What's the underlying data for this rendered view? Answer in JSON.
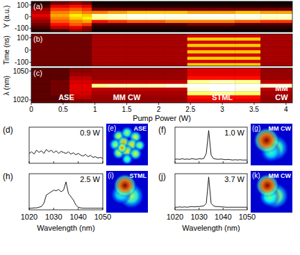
{
  "chart_data": [
    {
      "type": "heatmap",
      "panel": "(a)",
      "y_label": "Y (a.u.)",
      "color": "hot",
      "tick_labels": "y",
      "xlim": [
        0,
        4.1
      ],
      "ylim": [
        -130,
        130
      ],
      "yticks": [
        100,
        0,
        -100
      ],
      "x_bins": [
        0,
        0.3,
        0.6,
        0.8,
        0.95,
        1.2,
        1.5,
        1.8,
        2.1,
        2.45,
        2.8,
        3.2,
        3.6,
        3.85,
        4.1
      ],
      "y_bins": [
        -130,
        -104,
        -78,
        -52,
        -26,
        0,
        26,
        52,
        78,
        104,
        130
      ],
      "cells": [
        [
          0.05,
          0.1,
          0.2,
          0.15,
          0.02,
          0.02,
          0.02,
          0.02,
          0.02,
          0.02,
          0.02,
          0.02,
          0.02,
          0.02
        ],
        [
          0.1,
          0.25,
          0.3,
          0.2,
          0.05,
          0.05,
          0.05,
          0.05,
          0.05,
          0.05,
          0.05,
          0.05,
          0.05,
          0.05
        ],
        [
          0.15,
          0.35,
          0.45,
          0.4,
          0.1,
          0.1,
          0.1,
          0.1,
          0.1,
          0.15,
          0.15,
          0.1,
          0.1,
          0.1
        ],
        [
          0.2,
          0.45,
          0.5,
          0.55,
          0.35,
          0.4,
          0.45,
          0.45,
          0.5,
          0.5,
          0.5,
          0.45,
          0.4,
          0.4
        ],
        [
          0.25,
          0.5,
          0.6,
          0.65,
          0.85,
          0.9,
          0.95,
          0.95,
          0.95,
          0.95,
          0.95,
          0.95,
          0.9,
          0.9
        ],
        [
          0.3,
          0.55,
          0.65,
          0.6,
          0.9,
          0.95,
          1,
          1,
          1,
          1,
          1,
          1,
          0.95,
          0.95
        ],
        [
          0.25,
          0.5,
          0.55,
          0.5,
          0.5,
          0.55,
          0.6,
          0.6,
          0.6,
          0.55,
          0.55,
          0.6,
          0.55,
          0.55
        ],
        [
          0.2,
          0.4,
          0.45,
          0.4,
          0.15,
          0.15,
          0.15,
          0.15,
          0.15,
          0.15,
          0.15,
          0.15,
          0.15,
          0.15
        ],
        [
          0.1,
          0.3,
          0.35,
          0.3,
          0.05,
          0.05,
          0.05,
          0.05,
          0.05,
          0.05,
          0.05,
          0.05,
          0.05,
          0.05
        ],
        [
          0.05,
          0.15,
          0.2,
          0.15,
          0.02,
          0.02,
          0.02,
          0.02,
          0.02,
          0.02,
          0.02,
          0.02,
          0.02,
          0.02
        ]
      ]
    },
    {
      "type": "heatmap",
      "panel": "(b)",
      "y_label": "Time (ns)",
      "color": "hot",
      "tick_labels": "y",
      "xlim": [
        0,
        4.1
      ],
      "ylim": [
        -130,
        130
      ],
      "yticks": [
        100,
        0,
        -100
      ],
      "x_bins": [
        0,
        0.3,
        0.6,
        0.8,
        0.95,
        1.2,
        1.5,
        1.8,
        2.1,
        2.45,
        2.8,
        3.2,
        3.6,
        3.85,
        4.1
      ],
      "y_bins": [
        -130,
        -104,
        -78,
        -52,
        -26,
        0,
        26,
        52,
        78,
        104,
        130
      ],
      "cells": [
        [
          0.15,
          0.15,
          0.15,
          0.15,
          0.22,
          0.22,
          0.22,
          0.22,
          0.22,
          0.6,
          0.6,
          0.6,
          0.22,
          0.22
        ],
        [
          0.15,
          0.15,
          0.15,
          0.15,
          0.22,
          0.22,
          0.22,
          0.22,
          0.22,
          0.28,
          0.28,
          0.28,
          0.22,
          0.22
        ],
        [
          0.15,
          0.15,
          0.15,
          0.15,
          0.22,
          0.22,
          0.22,
          0.22,
          0.22,
          0.6,
          0.6,
          0.6,
          0.22,
          0.22
        ],
        [
          0.15,
          0.15,
          0.15,
          0.15,
          0.22,
          0.22,
          0.22,
          0.22,
          0.22,
          0.28,
          0.28,
          0.28,
          0.22,
          0.22
        ],
        [
          0.15,
          0.15,
          0.15,
          0.15,
          0.22,
          0.22,
          0.22,
          0.22,
          0.22,
          0.6,
          0.6,
          0.6,
          0.22,
          0.22
        ],
        [
          0.15,
          0.15,
          0.15,
          0.15,
          0.22,
          0.22,
          0.22,
          0.22,
          0.22,
          0.28,
          0.28,
          0.28,
          0.22,
          0.22
        ],
        [
          0.15,
          0.15,
          0.15,
          0.15,
          0.22,
          0.22,
          0.22,
          0.22,
          0.22,
          0.6,
          0.6,
          0.6,
          0.22,
          0.22
        ],
        [
          0.15,
          0.15,
          0.15,
          0.15,
          0.22,
          0.22,
          0.22,
          0.22,
          0.22,
          0.28,
          0.28,
          0.28,
          0.22,
          0.22
        ],
        [
          0.15,
          0.15,
          0.15,
          0.15,
          0.22,
          0.22,
          0.22,
          0.22,
          0.22,
          0.6,
          0.6,
          0.6,
          0.22,
          0.22
        ],
        [
          0.15,
          0.15,
          0.15,
          0.15,
          0.22,
          0.22,
          0.22,
          0.22,
          0.22,
          0.28,
          0.28,
          0.28,
          0.22,
          0.22
        ]
      ]
    },
    {
      "type": "heatmap",
      "panel": "(c)",
      "y_label": "λ (nm)",
      "x_label": "Pump Power (W)",
      "color": "hot",
      "tick_labels": true,
      "xlim": [
        0,
        4.1
      ],
      "ylim": [
        1017,
        1053
      ],
      "yticks": [
        1050,
        1020
      ],
      "xticks": [
        0,
        0.5,
        1,
        1.5,
        2,
        2.5,
        3,
        3.5,
        4
      ],
      "x_bins": [
        0,
        0.3,
        0.6,
        0.8,
        0.95,
        1.2,
        1.5,
        1.8,
        2.1,
        2.45,
        2.8,
        3.2,
        3.6,
        3.85,
        4.1
      ],
      "y_bins": [
        1017,
        1021,
        1025,
        1029,
        1033,
        1037,
        1041,
        1045,
        1049,
        1053
      ],
      "cells": [
        [
          0.12,
          0.12,
          0.18,
          0.18,
          0.2,
          0.2,
          0.2,
          0.2,
          0.2,
          0.3,
          0.3,
          0.3,
          0.2,
          0.2
        ],
        [
          0.12,
          0.12,
          0.25,
          0.25,
          0.2,
          0.2,
          0.2,
          0.2,
          0.2,
          0.35,
          0.35,
          0.35,
          0.2,
          0.2
        ],
        [
          0.12,
          0.15,
          0.28,
          0.28,
          0.22,
          0.22,
          0.22,
          0.22,
          0.22,
          0.8,
          0.85,
          0.8,
          0.22,
          0.22
        ],
        [
          0.12,
          0.15,
          0.3,
          0.3,
          0.25,
          0.25,
          0.25,
          0.25,
          0.25,
          0.95,
          1,
          0.95,
          0.25,
          0.25
        ],
        [
          0.12,
          0.15,
          0.3,
          0.3,
          0.85,
          0.9,
          0.9,
          0.9,
          0.95,
          1,
          1,
          1,
          0.95,
          0.95
        ],
        [
          0.12,
          0.15,
          0.28,
          0.28,
          0.25,
          0.25,
          0.25,
          0.25,
          0.25,
          0.85,
          0.9,
          0.85,
          0.25,
          0.25
        ],
        [
          0.12,
          0.12,
          0.25,
          0.25,
          0.2,
          0.2,
          0.2,
          0.2,
          0.2,
          0.35,
          0.35,
          0.35,
          0.2,
          0.2
        ],
        [
          0.12,
          0.12,
          0.2,
          0.2,
          0.2,
          0.2,
          0.2,
          0.2,
          0.2,
          0.3,
          0.3,
          0.3,
          0.2,
          0.2
        ],
        [
          0.12,
          0.12,
          0.18,
          0.18,
          0.2,
          0.2,
          0.2,
          0.2,
          0.2,
          0.3,
          0.3,
          0.3,
          0.2,
          0.2
        ]
      ],
      "annotations": [
        {
          "text": "ASE",
          "x": 0.55,
          "y": 1020
        },
        {
          "text": "MM CW",
          "x": 1.5,
          "y": 1020
        },
        {
          "text": "STML",
          "x": 3.0,
          "y": 1020
        },
        {
          "text": "MM",
          "x": 3.93,
          "y": 1029
        },
        {
          "text": "CW",
          "x": 3.93,
          "y": 1020
        }
      ]
    },
    {
      "type": "line",
      "panel": "(d)",
      "annotation": "0.9 W",
      "tick_labels": false,
      "xlim": [
        1020,
        1050
      ],
      "ylim": [
        0,
        1.1
      ],
      "xticks": [
        1020,
        1030,
        1040,
        1050
      ],
      "x": [
        1020,
        1021,
        1022,
        1023,
        1024,
        1025,
        1026,
        1027,
        1028,
        1029,
        1030,
        1031,
        1032,
        1033,
        1034,
        1035,
        1036,
        1037,
        1038,
        1039,
        1040,
        1041,
        1042,
        1043,
        1044,
        1045,
        1046,
        1047,
        1048,
        1049,
        1050
      ],
      "series": [
        {
          "color": "#000000",
          "values": [
            0.3,
            0.35,
            0.28,
            0.4,
            0.33,
            0.38,
            0.3,
            0.42,
            0.35,
            0.4,
            0.32,
            0.38,
            0.3,
            0.36,
            0.33,
            0.3,
            0.35,
            0.28,
            0.32,
            0.26,
            0.3,
            0.25,
            0.22,
            0.27,
            0.2,
            0.24,
            0.18,
            0.2,
            0.16,
            0.18,
            0.15
          ]
        }
      ]
    },
    {
      "type": "image",
      "panel": "(e)",
      "label": "ASE",
      "color": "jet",
      "spots": [
        {
          "x": 0.3,
          "y": 0.3,
          "r": 0.1,
          "intensity": 0.6
        },
        {
          "x": 0.5,
          "y": 0.22,
          "r": 0.1,
          "intensity": 0.55
        },
        {
          "x": 0.7,
          "y": 0.32,
          "r": 0.1,
          "intensity": 0.6
        },
        {
          "x": 0.22,
          "y": 0.5,
          "r": 0.1,
          "intensity": 0.55
        },
        {
          "x": 0.42,
          "y": 0.45,
          "r": 0.1,
          "intensity": 0.7
        },
        {
          "x": 0.62,
          "y": 0.5,
          "r": 0.1,
          "intensity": 0.65
        },
        {
          "x": 0.8,
          "y": 0.52,
          "r": 0.09,
          "intensity": 0.55
        },
        {
          "x": 0.3,
          "y": 0.7,
          "r": 0.1,
          "intensity": 0.6
        },
        {
          "x": 0.5,
          "y": 0.66,
          "r": 0.1,
          "intensity": 0.65
        },
        {
          "x": 0.7,
          "y": 0.72,
          "r": 0.1,
          "intensity": 0.6
        },
        {
          "x": 0.5,
          "y": 0.85,
          "r": 0.09,
          "intensity": 0.5
        },
        {
          "x": 0.38,
          "y": 0.58,
          "r": 0.08,
          "intensity": 0.75
        }
      ]
    },
    {
      "type": "line",
      "panel": "(f)",
      "annotation": "1.0 W",
      "tick_labels": false,
      "xlim": [
        1020,
        1050
      ],
      "ylim": [
        0,
        1.1
      ],
      "xticks": [
        1020,
        1030,
        1040,
        1050
      ],
      "x": [
        1020,
        1021,
        1022,
        1023,
        1024,
        1025,
        1026,
        1027,
        1028,
        1029,
        1030,
        1031,
        1032,
        1033,
        1034,
        1035,
        1036,
        1037,
        1038,
        1039,
        1040,
        1041,
        1042,
        1043,
        1044,
        1045,
        1046,
        1047,
        1048,
        1049,
        1050
      ],
      "series": [
        {
          "color": "#000000",
          "values": [
            0.12,
            0.13,
            0.12,
            0.14,
            0.12,
            0.13,
            0.12,
            0.14,
            0.13,
            0.12,
            0.14,
            0.13,
            0.15,
            0.3,
            1.0,
            0.25,
            0.14,
            0.13,
            0.12,
            0.13,
            0.12,
            0.11,
            0.12,
            0.11,
            0.1,
            0.11,
            0.1,
            0.11,
            0.1,
            0.1,
            0.1
          ]
        }
      ]
    },
    {
      "type": "image",
      "panel": "(g)",
      "label": "MM CW",
      "color": "jet",
      "spots": [
        {
          "x": 0.6,
          "y": 0.58,
          "r": 0.2,
          "intensity": 0.55
        },
        {
          "x": 0.48,
          "y": 0.68,
          "r": 0.16,
          "intensity": 0.45
        },
        {
          "x": 0.38,
          "y": 0.4,
          "r": 0.2,
          "intensity": 1
        }
      ]
    },
    {
      "type": "line",
      "panel": "(h)",
      "annotation": "2.5 W",
      "tick_labels": "x",
      "x_label": "Wavelength (nm)",
      "xlim": [
        1020,
        1050
      ],
      "ylim": [
        0,
        1.1
      ],
      "xticks": [
        1020,
        1030,
        1040,
        1050
      ],
      "x": [
        1020,
        1021,
        1022,
        1023,
        1024,
        1025,
        1026,
        1027,
        1028,
        1029,
        1030,
        1031,
        1032,
        1033,
        1034,
        1035,
        1036,
        1037,
        1038,
        1039,
        1040,
        1041,
        1042,
        1043,
        1044,
        1045,
        1046,
        1047,
        1048,
        1049,
        1050
      ],
      "series": [
        {
          "color": "#000000",
          "values": [
            0.05,
            0.05,
            0.06,
            0.06,
            0.08,
            0.1,
            0.2,
            0.45,
            0.5,
            0.55,
            0.6,
            0.58,
            0.62,
            0.55,
            0.6,
            0.85,
            0.5,
            0.4,
            0.3,
            0.15,
            0.08,
            0.06,
            0.05,
            0.05,
            0.05,
            0.05,
            0.05,
            0.05,
            0.05,
            0.05,
            0.05
          ]
        }
      ]
    },
    {
      "type": "image",
      "panel": "(i)",
      "label": "STML",
      "color": "jet",
      "spots": [
        {
          "x": 0.6,
          "y": 0.6,
          "r": 0.2,
          "intensity": 0.55
        },
        {
          "x": 0.35,
          "y": 0.56,
          "r": 0.16,
          "intensity": 0.45
        },
        {
          "x": 0.45,
          "y": 0.35,
          "r": 0.18,
          "intensity": 1
        }
      ]
    },
    {
      "type": "line",
      "panel": "(j)",
      "annotation": "3.7 W",
      "tick_labels": "x",
      "x_label": "Wavelength (nm)",
      "xlim": [
        1020,
        1050
      ],
      "ylim": [
        0,
        1.1
      ],
      "xticks": [
        1020,
        1030,
        1040,
        1050
      ],
      "x": [
        1020,
        1021,
        1022,
        1023,
        1024,
        1025,
        1026,
        1027,
        1028,
        1029,
        1030,
        1031,
        1032,
        1033,
        1034,
        1035,
        1036,
        1037,
        1038,
        1039,
        1040,
        1041,
        1042,
        1043,
        1044,
        1045,
        1046,
        1047,
        1048,
        1049,
        1050
      ],
      "series": [
        {
          "color": "#000000",
          "values": [
            0.08,
            0.08,
            0.09,
            0.08,
            0.09,
            0.08,
            0.09,
            0.1,
            0.09,
            0.1,
            0.1,
            0.11,
            0.12,
            0.2,
            1.0,
            0.2,
            0.12,
            0.1,
            0.1,
            0.09,
            0.09,
            0.08,
            0.08,
            0.08,
            0.08,
            0.08,
            0.08,
            0.08,
            0.08,
            0.08,
            0.08
          ]
        }
      ]
    },
    {
      "type": "image",
      "panel": "(k)",
      "label": "MM CW",
      "color": "jet",
      "spots": [
        {
          "x": 0.6,
          "y": 0.6,
          "r": 0.2,
          "intensity": 0.6
        },
        {
          "x": 0.45,
          "y": 0.62,
          "r": 0.16,
          "intensity": 0.5
        },
        {
          "x": 0.4,
          "y": 0.35,
          "r": 0.18,
          "intensity": 1
        }
      ]
    }
  ]
}
